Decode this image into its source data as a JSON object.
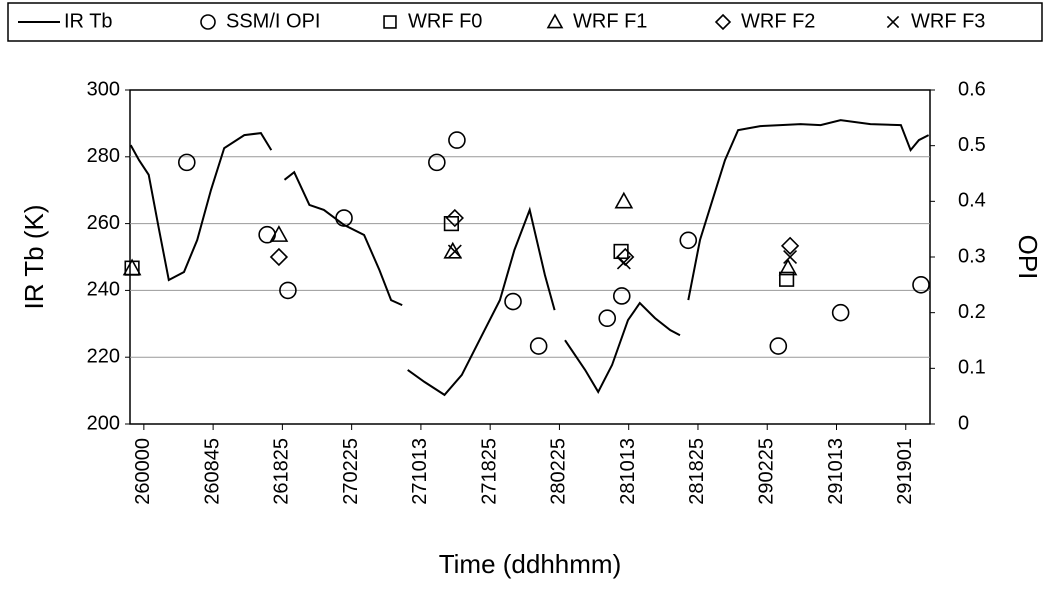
{
  "chart_data": {
    "type": "line-scatter",
    "xlabel": "Time (ddhhmm)",
    "ylabel": "IR Tb (K)",
    "y2label": "OPI",
    "xlim": [
      -0.2,
      11.35
    ],
    "xticks": [
      {
        "value": 0,
        "label": "260000"
      },
      {
        "value": 1,
        "label": "260845"
      },
      {
        "value": 2,
        "label": "261825"
      },
      {
        "value": 3,
        "label": "270225"
      },
      {
        "value": 4,
        "label": "271013"
      },
      {
        "value": 5,
        "label": "271825"
      },
      {
        "value": 6,
        "label": "280225"
      },
      {
        "value": 7,
        "label": "281013"
      },
      {
        "value": 8,
        "label": "281825"
      },
      {
        "value": 9,
        "label": "290225"
      },
      {
        "value": 10,
        "label": "291013"
      },
      {
        "value": 11,
        "label": "291901"
      }
    ],
    "ylim": [
      200,
      300
    ],
    "yticks": [
      200,
      220,
      240,
      260,
      280,
      300
    ],
    "y2lim": [
      0,
      0.6
    ],
    "y2ticks": [
      0,
      0.1,
      0.2,
      0.3,
      0.4,
      0.5,
      0.6
    ],
    "grid": true,
    "series": [
      {
        "name": "IR Tb",
        "color": "#000000",
        "marker": "line",
        "x": [
          -0.19,
          -0.07,
          0.07,
          0.22,
          0.36,
          0.58,
          0.77,
          0.97,
          1.16,
          1.45,
          1.69,
          1.84,
          null,
          2.03,
          2.17,
          2.39,
          2.6,
          2.89,
          3.18,
          3.4,
          3.57,
          3.73,
          null,
          3.81,
          4.05,
          4.34,
          4.59,
          4.92,
          5.14,
          5.35,
          5.57,
          5.79,
          5.93,
          null,
          6.08,
          6.37,
          6.56,
          6.76,
          6.99,
          7.16,
          7.38,
          7.6,
          7.74,
          null,
          7.86,
          8.03,
          8.21,
          8.39,
          8.58,
          8.9,
          9.19,
          9.48,
          9.77,
          10.06,
          10.49,
          10.93,
          11.07,
          11.19,
          11.33
        ],
        "values": [
          283.5,
          279.0,
          274.6,
          258.1,
          243.1,
          245.5,
          255.1,
          270.1,
          282.6,
          286.5,
          287.1,
          282.0,
          null,
          273.1,
          275.4,
          265.6,
          264.1,
          259.6,
          256.6,
          246.1,
          237.1,
          235.6,
          null,
          216.2,
          212.6,
          208.7,
          214.7,
          228.1,
          237.1,
          252.1,
          264.1,
          244.6,
          234.1,
          null,
          225.1,
          216.2,
          209.6,
          217.7,
          231.1,
          236.2,
          231.7,
          228.1,
          226.6,
          null,
          237.1,
          255.1,
          267.1,
          279.0,
          288.0,
          289.2,
          289.5,
          289.8,
          289.5,
          291.0,
          289.8,
          289.5,
          282.0,
          285.0,
          286.5
        ]
      },
      {
        "name": "SSM/I OPI",
        "color": "#000000",
        "marker": "circle",
        "axis": "y2",
        "x": [
          0.62,
          1.78,
          2.08,
          2.89,
          4.23,
          4.52,
          5.33,
          5.7,
          6.69,
          6.9,
          7.86,
          9.16,
          10.06,
          11.22
        ],
        "values": [
          0.47,
          0.34,
          0.24,
          0.37,
          0.47,
          0.51,
          0.22,
          0.14,
          0.19,
          0.23,
          0.33,
          0.14,
          0.2,
          0.25
        ]
      },
      {
        "name": "WRF F0",
        "color": "#000000",
        "marker": "square",
        "axis": "y2",
        "x": [
          -0.17,
          4.44,
          6.89,
          9.28
        ],
        "values": [
          0.28,
          0.36,
          0.31,
          0.26
        ]
      },
      {
        "name": "WRF F1",
        "color": "#000000",
        "marker": "triangle",
        "axis": "y2",
        "x": [
          -0.17,
          1.95,
          4.46,
          6.93,
          9.3
        ],
        "values": [
          0.28,
          0.34,
          0.31,
          0.4,
          0.28
        ]
      },
      {
        "name": "WRF F2",
        "color": "#000000",
        "marker": "diamond",
        "axis": "y2",
        "x": [
          1.95,
          4.49,
          6.95,
          9.33
        ],
        "values": [
          0.3,
          0.37,
          0.3,
          0.32
        ]
      },
      {
        "name": "WRF F3",
        "color": "#000000",
        "marker": "cross",
        "axis": "y2",
        "x": [
          4.49,
          6.93,
          9.33
        ],
        "values": [
          0.31,
          0.29,
          0.3
        ]
      }
    ]
  }
}
